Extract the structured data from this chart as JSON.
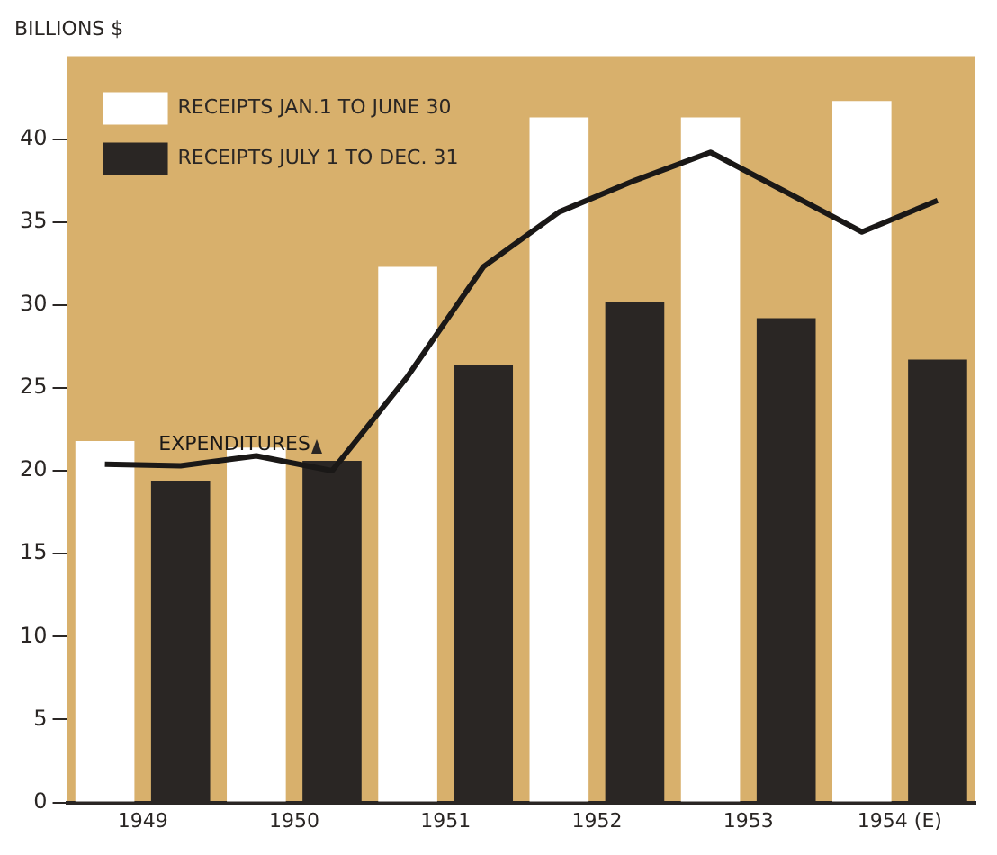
{
  "chart_data": {
    "type": "bar",
    "ylabel": "BILLIONS $",
    "series": [
      {
        "name": "RECEIPTS JAN.1 TO JUNE 30",
        "color": "#ffffff",
        "x": [
          1948.75,
          1949.75,
          1950.75,
          1951.75,
          1952.75,
          1953.75
        ],
        "values": [
          21.8,
          21.4,
          32.3,
          41.3,
          41.3,
          42.3
        ]
      },
      {
        "name": "RECEIPTS JULY 1 TO DEC. 31",
        "color": "#2a2624",
        "x": [
          1949.25,
          1950.25,
          1951.25,
          1952.25,
          1953.25,
          1954.25
        ],
        "values": [
          19.4,
          20.6,
          26.4,
          30.2,
          29.2,
          26.7
        ]
      },
      {
        "name": "EXPENDITURES",
        "type": "line",
        "color": "#1a1817",
        "x": [
          1948.75,
          1949.25,
          1949.75,
          1950.25,
          1950.75,
          1951.25,
          1951.75,
          1952.25,
          1952.75,
          1953.25,
          1953.75,
          1954.25
        ],
        "values": [
          20.4,
          20.3,
          20.9,
          20.0,
          25.7,
          32.3,
          35.6,
          37.5,
          39.2,
          36.8,
          34.4,
          36.3
        ]
      }
    ],
    "xlim": [
      1948.5,
      1954.5
    ],
    "xticks": [
      1949,
      1950,
      1951,
      1952,
      1953,
      {
        "value": 1954,
        "label": "1954 (E)"
      }
    ],
    "ylim": [
      0,
      45
    ],
    "yticks": [
      0,
      5,
      10,
      15,
      20,
      25,
      30,
      35,
      40
    ],
    "grid": false,
    "legend": "top left",
    "marker": "none",
    "line_style": "solid"
  }
}
